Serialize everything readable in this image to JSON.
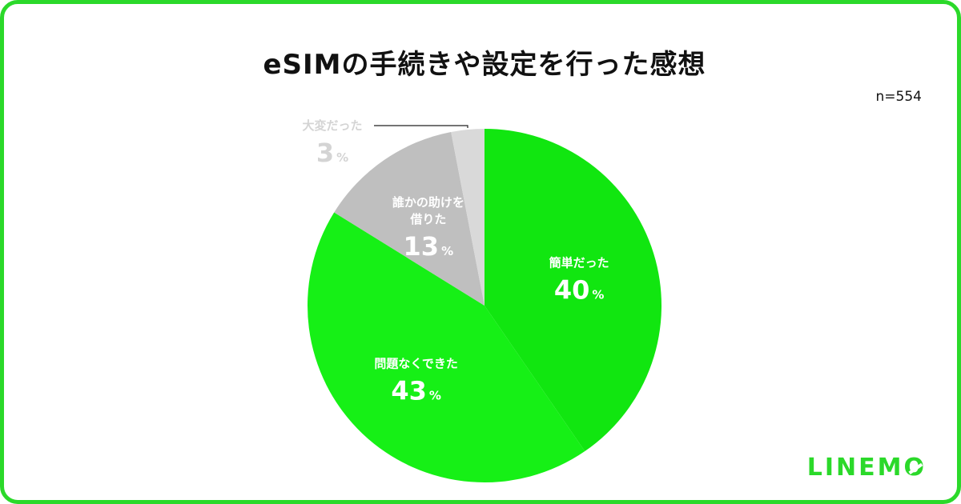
{
  "chart_data": {
    "type": "pie",
    "title": "eSIMの手続きや設定を行った感想",
    "sample_size": "n=554",
    "start_angle_deg": 0,
    "direction": "clockwise",
    "slices": [
      {
        "label": "簡単だった",
        "value": 40,
        "display": "40",
        "unit": "%",
        "color": "#11e610",
        "label_color": "#ffffff"
      },
      {
        "label": "問題なくできた",
        "value": 43,
        "display": "43",
        "unit": "%",
        "color": "#16f016",
        "label_color": "#ffffff"
      },
      {
        "label": "誰かの助けを借りた",
        "label_lines": [
          "誰かの助けを",
          "借りた"
        ],
        "value": 13,
        "display": "13",
        "unit": "%",
        "color": "#bfbfbf",
        "label_color": "#ffffff"
      },
      {
        "label": "大変だった",
        "value": 3,
        "display": "3",
        "unit": "%",
        "color": "#d9d9d9",
        "label_color": "#d4d4d4",
        "label_outside": true
      }
    ]
  },
  "brand": {
    "logo": "LINEMO",
    "color": "#2bd92a"
  }
}
